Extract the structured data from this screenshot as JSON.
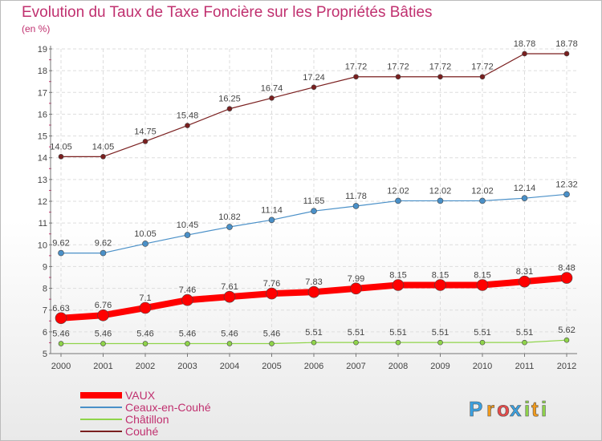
{
  "chart_data": {
    "type": "line",
    "title": "Evolution du Taux de Taxe Foncière sur les Propriétés Bâties",
    "ylabel": "(en %)",
    "xlabel": "",
    "x": [
      "2000",
      "2001",
      "2002",
      "2003",
      "2004",
      "2005",
      "2006",
      "2007",
      "2008",
      "2009",
      "2010",
      "2011",
      "2012"
    ],
    "ylim": [
      5,
      19
    ],
    "yticks": [
      5,
      6,
      7,
      8,
      9,
      10,
      11,
      12,
      13,
      14,
      15,
      16,
      17,
      18,
      19
    ],
    "grid": true,
    "legend_placement": "bottom-left",
    "series": [
      {
        "name": "VAUX",
        "color": "#ff0000",
        "values": [
          6.63,
          6.76,
          7.1,
          7.46,
          7.61,
          7.76,
          7.83,
          7.99,
          8.15,
          8.15,
          8.15,
          8.31,
          8.48
        ],
        "labels": [
          "6.63",
          "6.76",
          "7.1",
          "7.46",
          "7.61",
          "7.76",
          "7.83",
          "7.99",
          "8.15",
          "8.15",
          "8.15",
          "8.31",
          "8.48"
        ]
      },
      {
        "name": "Ceaux-en-Couhé",
        "color": "#4a90c8",
        "values": [
          9.62,
          9.62,
          10.05,
          10.45,
          10.82,
          11.14,
          11.55,
          11.78,
          12.02,
          12.02,
          12.02,
          12.14,
          12.32
        ],
        "labels": [
          "9.62",
          "9.62",
          "10.05",
          "10.45",
          "10.82",
          "11.14",
          "11.55",
          "11.78",
          "12.02",
          "12.02",
          "12.02",
          "12.14",
          "12.32"
        ]
      },
      {
        "name": "Châtillon",
        "color": "#8fd44a",
        "values": [
          5.46,
          5.46,
          5.46,
          5.46,
          5.46,
          5.46,
          5.51,
          5.51,
          5.51,
          5.51,
          5.51,
          5.51,
          5.62
        ],
        "labels": [
          "5.46",
          "5.46",
          "5.46",
          "5.46",
          "5.46",
          "5.46",
          "5.51",
          "5.51",
          "5.51",
          "5.51",
          "5.51",
          "5.51",
          "5.62"
        ]
      },
      {
        "name": "Couhé",
        "color": "#7a1f1f",
        "values": [
          14.05,
          14.05,
          14.75,
          15.48,
          16.25,
          16.74,
          17.24,
          17.72,
          17.72,
          17.72,
          17.72,
          18.78,
          18.78
        ],
        "labels": [
          "14.05",
          "14.05",
          "14.75",
          "15.48",
          "16.25",
          "16.74",
          "17.24",
          "17.72",
          "17.72",
          "17.72",
          "17.72",
          "18.78",
          "18.78"
        ]
      }
    ]
  },
  "brand": {
    "text": "Proxiti",
    "letters": [
      "P",
      "r",
      "o",
      "x",
      "i",
      "t",
      "i"
    ],
    "colors": [
      "#3aa0e0",
      "#f29a1a",
      "#e84a4a",
      "#3aa0e0",
      "#8fd44a",
      "#f29a1a",
      "#8fd44a"
    ]
  }
}
